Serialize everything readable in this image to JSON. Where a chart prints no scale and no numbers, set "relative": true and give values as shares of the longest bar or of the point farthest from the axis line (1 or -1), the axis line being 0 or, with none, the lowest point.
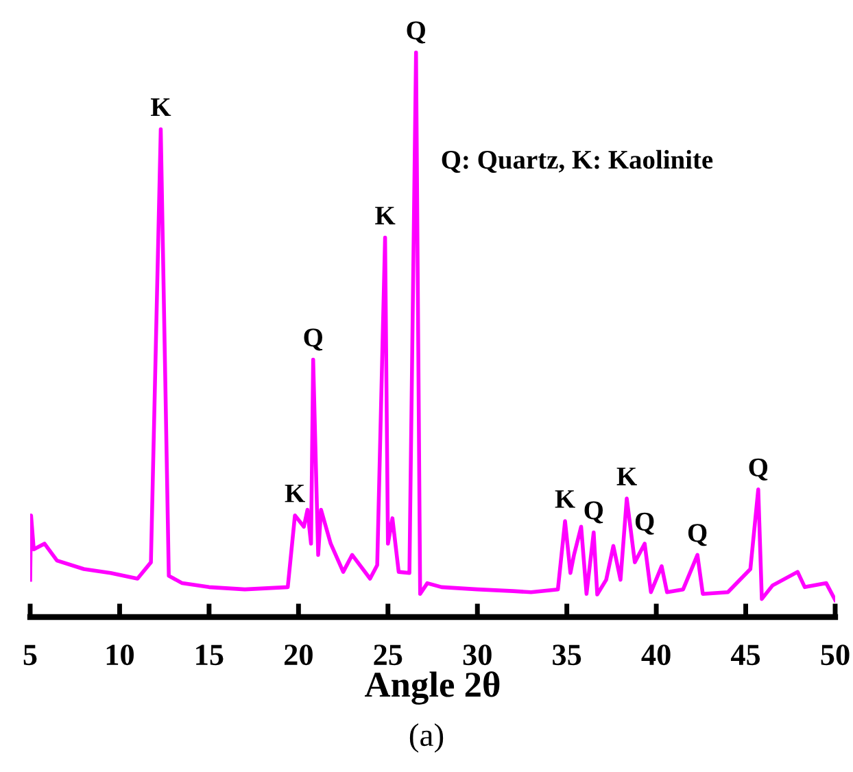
{
  "chart_data": {
    "type": "line",
    "relative": true,
    "xlabel": "Angle 2θ",
    "x": [
      5.0,
      5.05,
      5.2,
      5.8,
      6.5,
      8,
      9.5,
      11,
      11.75,
      12.3,
      12.75,
      13.5,
      15,
      17,
      19.4,
      19.8,
      20.3,
      20.5,
      20.7,
      20.82,
      21.1,
      21.26,
      21.8,
      22.5,
      23.0,
      24.0,
      24.4,
      24.84,
      25.0,
      25.25,
      25.6,
      26.2,
      26.57,
      26.8,
      27.2,
      28,
      30,
      32,
      33,
      34.5,
      34.9,
      35.2,
      35.4,
      35.8,
      36.1,
      36.5,
      36.7,
      37.2,
      37.6,
      38.0,
      38.35,
      38.8,
      39.35,
      39.7,
      40.3,
      40.6,
      41.5,
      42.3,
      42.6,
      44,
      45.26,
      45.7,
      45.9,
      46.5,
      47.9,
      48.3,
      49.5,
      50
    ],
    "series": [
      {
        "color": "#ff00ff",
        "values": [
          0.066,
          0.18,
          0.12,
          0.13,
          0.1,
          0.085,
          0.078,
          0.068,
          0.097,
          0.864,
          0.073,
          0.06,
          0.053,
          0.049,
          0.053,
          0.18,
          0.16,
          0.19,
          0.13,
          0.456,
          0.11,
          0.19,
          0.13,
          0.08,
          0.11,
          0.068,
          0.092,
          0.672,
          0.13,
          0.175,
          0.08,
          0.078,
          1.0,
          0.041,
          0.06,
          0.053,
          0.049,
          0.046,
          0.044,
          0.049,
          0.17,
          0.078,
          0.11,
          0.16,
          0.041,
          0.15,
          0.04,
          0.066,
          0.126,
          0.066,
          0.21,
          0.097,
          0.13,
          0.044,
          0.09,
          0.044,
          0.049,
          0.11,
          0.041,
          0.044,
          0.085,
          0.226,
          0.032,
          0.056,
          0.08,
          0.053,
          0.06,
          0.03
        ]
      }
    ],
    "xlim": [
      5,
      50
    ],
    "xticks": [
      5,
      10,
      15,
      20,
      25,
      30,
      35,
      40,
      45,
      50
    ],
    "grid": false,
    "tick_labels": "x",
    "annotations": [
      {
        "text": "K",
        "x": 12.3,
        "y": 0.864
      },
      {
        "text": "K",
        "x": 19.8,
        "y": 0.18
      },
      {
        "text": "Q",
        "x": 20.82,
        "y": 0.456
      },
      {
        "text": "K",
        "x": 24.84,
        "y": 0.672
      },
      {
        "text": "Q",
        "x": 26.57,
        "y": 1.0
      },
      {
        "text": "K",
        "x": 34.9,
        "y": 0.17
      },
      {
        "text": "Q",
        "x": 36.5,
        "y": 0.15
      },
      {
        "text": "K",
        "x": 38.35,
        "y": 0.21
      },
      {
        "text": "Q",
        "x": 39.35,
        "y": 0.13
      },
      {
        "text": "Q",
        "x": 42.3,
        "y": 0.11
      },
      {
        "text": "Q",
        "x": 45.7,
        "y": 0.226
      },
      "Q: Quartz, K: Kaolinite",
      "(a)"
    ]
  }
}
